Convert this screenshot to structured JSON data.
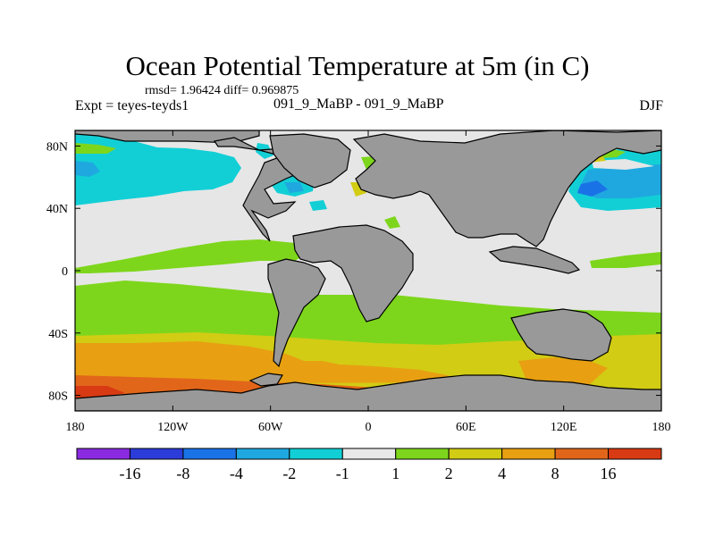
{
  "chart_data": {
    "type": "heatmap",
    "title": "Ocean Potential Temperature at 5m (in C)",
    "stats_label": "rmsd= 1.96424 diff= 0.969875",
    "experiment_label": "Expt = teyes-teyds1",
    "center_label": "091_9_MaBP - 091_9_MaBP",
    "season": "DJF",
    "x_ticks": [
      "180",
      "120W",
      "60W",
      "0",
      "60E",
      "120E",
      "180"
    ],
    "y_ticks": [
      "80N",
      "40N",
      "0",
      "40S",
      "80S"
    ],
    "x_range": [
      -180,
      180
    ],
    "y_range": [
      -90,
      90
    ],
    "colorbar": {
      "labels": [
        "-16",
        "-8",
        "-4",
        "-2",
        "-1",
        "1",
        "2",
        "4",
        "8",
        "16"
      ],
      "colors": [
        "#8a2be2",
        "#2b3cd8",
        "#1a73e6",
        "#1fa8e0",
        "#12cfd6",
        "#e8e8e8",
        "#7ed61c",
        "#d2cc14",
        "#e8a012",
        "#e2661a",
        "#d83a14"
      ]
    },
    "colors": {
      "land": "#999999",
      "ocean_base": "#e6e6e6"
    }
  }
}
